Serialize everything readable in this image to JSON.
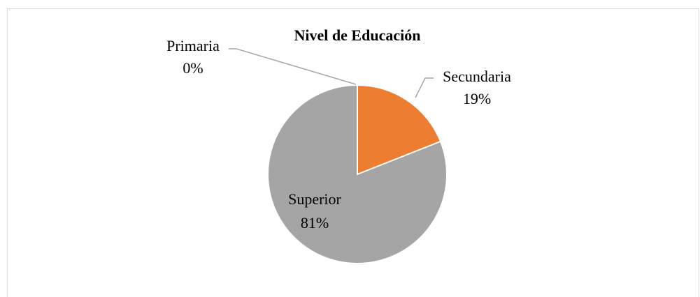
{
  "chart_data": {
    "type": "pie",
    "title": "Nivel de Educación",
    "categories": [
      "Primaria",
      "Secundaria",
      "Superior"
    ],
    "values": [
      0,
      19,
      81
    ],
    "value_labels": [
      "0%",
      "19%",
      "81%"
    ],
    "colors": [
      "#4472c4",
      "#ed7d31",
      "#a5a5a5"
    ]
  }
}
